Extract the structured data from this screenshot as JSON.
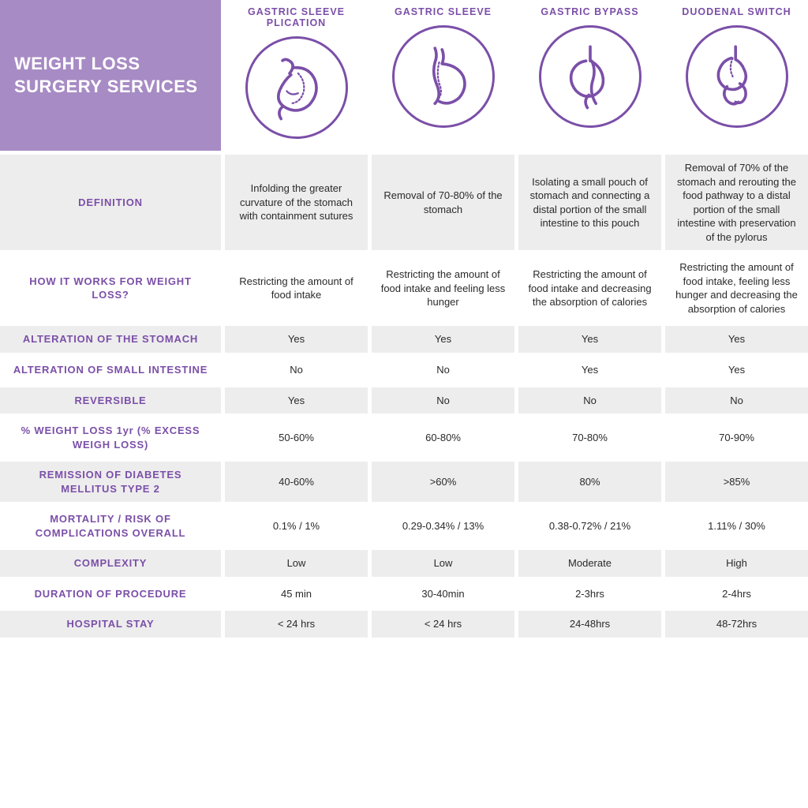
{
  "title": "WEIGHT LOSS SURGERY SERVICES",
  "colors": {
    "accent": "#7b4fa8",
    "header_bg": "#a78bc4",
    "shaded_bg": "#ededed",
    "text": "#2a2a2a"
  },
  "procedures": [
    {
      "name": "GASTRIC SLEEVE PLICATION"
    },
    {
      "name": "GASTRIC SLEEVE"
    },
    {
      "name": "GASTRIC BYPASS"
    },
    {
      "name": "DUODENAL SWITCH"
    }
  ],
  "rows": [
    {
      "label": "DEFINITION",
      "shaded": true,
      "size": "def-row",
      "values": [
        "Infolding the greater curvature of the stomach with containment sutures",
        "Removal of 70-80% of the stomach",
        "Isolating a small pouch of stomach and connecting a distal portion of the small intestine to this pouch",
        "Removal of 70% of the stomach and rerouting the food pathway to a distal portion of the small intestine with preservation of the pylorus"
      ]
    },
    {
      "label": "HOW IT WORKS FOR WEIGHT LOSS?",
      "shaded": false,
      "size": "how-row",
      "values": [
        "Restricting the amount of food intake",
        "Restricting the amount of food intake and feeling less hunger",
        "Restricting the amount of food intake and decreasing the absorption of calories",
        "Restricting the amount of food intake, feeling less hunger and decreasing the absorption of calories"
      ]
    },
    {
      "label": "ALTERATION OF THE STOMACH",
      "shaded": true,
      "size": "med-row",
      "values": [
        "Yes",
        "Yes",
        "Yes",
        "Yes"
      ]
    },
    {
      "label": "ALTERATION OF SMALL INTESTINE",
      "shaded": false,
      "size": "med-row",
      "values": [
        "No",
        "No",
        "Yes",
        "Yes"
      ]
    },
    {
      "label": "REVERSIBLE",
      "shaded": true,
      "size": "med-row",
      "values": [
        "Yes",
        "No",
        "No",
        "No"
      ]
    },
    {
      "label": "% WEIGHT LOSS 1yr (% EXCESS WEIGH LOSS)",
      "shaded": false,
      "size": "sm-row",
      "values": [
        "50-60%",
        "60-80%",
        "70-80%",
        "70-90%"
      ]
    },
    {
      "label": "REMISSION OF DIABETES MELLITUS TYPE 2",
      "shaded": true,
      "size": "sm-row",
      "values": [
        "40-60%",
        ">60%",
        "80%",
        ">85%"
      ]
    },
    {
      "label": "MORTALITY / RISK OF COMPLICATIONS OVERALL",
      "shaded": false,
      "size": "sm-row",
      "values": [
        "0.1% / 1%",
        "0.29-0.34% / 13%",
        "0.38-0.72% / 21%",
        "1.11% / 30%"
      ]
    },
    {
      "label": "COMPLEXITY",
      "shaded": true,
      "size": "sm-row",
      "values": [
        "Low",
        "Low",
        "Moderate",
        "High"
      ]
    },
    {
      "label": "DURATION OF PROCEDURE",
      "shaded": false,
      "size": "sm-row",
      "values": [
        "45 min",
        "30-40min",
        "2-3hrs",
        "2-4hrs"
      ]
    },
    {
      "label": "HOSPITAL STAY",
      "shaded": true,
      "size": "sm-row",
      "values": [
        "< 24 hrs",
        "< 24 hrs",
        "24-48hrs",
        "48-72hrs"
      ]
    }
  ]
}
